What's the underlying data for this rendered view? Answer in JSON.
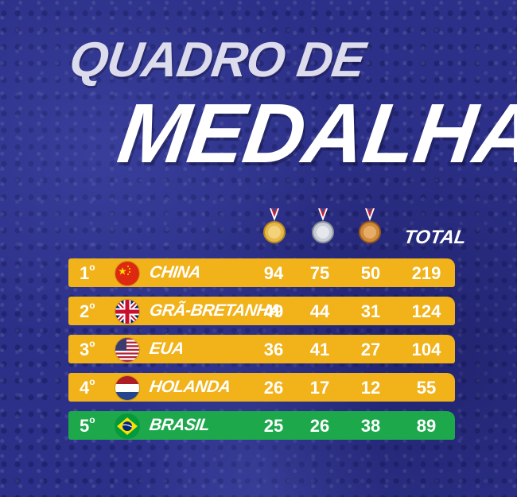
{
  "title": {
    "line1": "QUADRO DE",
    "line2": "MEDALHAS"
  },
  "columns": {
    "total": "TOTAL",
    "icons": [
      "gold-medal-icon",
      "silver-medal-icon",
      "bronze-medal-icon"
    ]
  },
  "colors": {
    "background": "#2c3088",
    "row": "#f1b21a",
    "highlight_row": "#1ca84b"
  },
  "rows": [
    {
      "rank": "1",
      "rank_suffix": "o",
      "flag": "china-flag-icon",
      "country": "CHINA",
      "gold": "94",
      "silver": "75",
      "bronze": "50",
      "total": "219"
    },
    {
      "rank": "2",
      "rank_suffix": "o",
      "flag": "uk-flag-icon",
      "country": "GRÃ-BRETANHA",
      "gold": "49",
      "silver": "44",
      "bronze": "31",
      "total": "124"
    },
    {
      "rank": "3",
      "rank_suffix": "o",
      "flag": "usa-flag-icon",
      "country": "EUA",
      "gold": "36",
      "silver": "41",
      "bronze": "27",
      "total": "104"
    },
    {
      "rank": "4",
      "rank_suffix": "o",
      "flag": "netherlands-flag-icon",
      "country": "HOLANDA",
      "gold": "26",
      "silver": "17",
      "bronze": "12",
      "total": "55"
    },
    {
      "rank": "5",
      "rank_suffix": "o",
      "flag": "brazil-flag-icon",
      "country": "BRASIL",
      "gold": "25",
      "silver": "26",
      "bronze": "38",
      "total": "89"
    }
  ]
}
